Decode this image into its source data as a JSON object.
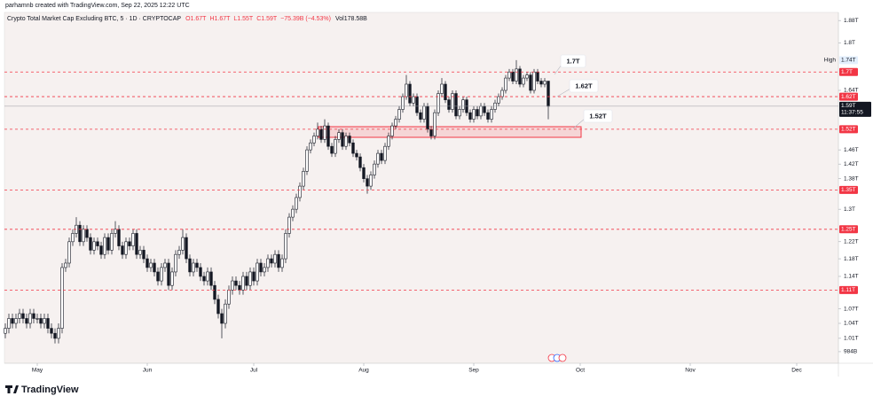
{
  "chart_data": {
    "type": "candlestick",
    "attribution": "parhamnb created with TradingView.com, Sep 22, 2025 12:22 UTC",
    "title": "Crypto Total Market Cap Excluding BTC, 5 · 1D · CRYPTOCAP",
    "legend_values": [
      "O1.67T",
      "H1.67T",
      "L1.55T",
      "C1.59T",
      "−75.39B (−4.53%)",
      "Vol178.58B"
    ],
    "logo": "TradingView",
    "log_scale": true,
    "up_color": "#ffffff",
    "down_color": "#131722",
    "xlim": [
      -0.25,
      234.75
    ],
    "xticks": [
      {
        "value": 9,
        "label": "May"
      },
      {
        "value": 40,
        "label": "Jun"
      },
      {
        "value": 70,
        "label": "Jul"
      },
      {
        "value": 101,
        "label": "Aug"
      },
      {
        "value": 132,
        "label": "Sep"
      },
      {
        "value": 162,
        "label": "Oct"
      },
      {
        "value": 193,
        "label": "Nov"
      },
      {
        "value": 223,
        "label": "Dec"
      }
    ],
    "ylim": [
      0.962,
      1.91
    ],
    "yticks": [
      {
        "value": 1.88,
        "label": "1.88T"
      },
      {
        "value": 1.8,
        "label": "1.8T"
      },
      {
        "value": 1.64,
        "label": "1.64T"
      },
      {
        "value": 1.46,
        "label": "1.46T"
      },
      {
        "value": 1.42,
        "label": "1.42T"
      },
      {
        "value": 1.38,
        "label": "1.38T"
      },
      {
        "value": 1.3,
        "label": "1.3T"
      },
      {
        "value": 1.22,
        "label": "1.22T"
      },
      {
        "value": 1.18,
        "label": "1.18T"
      },
      {
        "value": 1.14,
        "label": "1.14T"
      },
      {
        "value": 1.07,
        "label": "1.07T"
      },
      {
        "value": 1.04,
        "label": "1.04T"
      },
      {
        "value": 1.01,
        "label": "1.01T"
      },
      {
        "value": 0.984,
        "label": "984B"
      }
    ],
    "levels": [
      {
        "value": 1.7,
        "label": "1.7T"
      },
      {
        "value": 1.62,
        "label": "1.62T"
      },
      {
        "value": 1.52,
        "label": "1.52T"
      },
      {
        "value": 1.35,
        "label": "1.35T"
      },
      {
        "value": 1.25,
        "label": "1.25T"
      },
      {
        "value": 1.11,
        "label": "1.11T"
      }
    ],
    "level_color": "#f23645",
    "high": {
      "name": "High",
      "value": 1.74,
      "label": "1.74T"
    },
    "last_price": {
      "value": 1.59,
      "label": "1.59T",
      "countdown": "11:37:55"
    },
    "annotations": [
      "1.7T",
      "1.62T",
      "1.52T"
    ],
    "open": [
      1.02,
      1.03,
      1.05,
      1.04,
      1.05,
      1.06,
      1.05,
      1.04,
      1.06,
      1.05,
      1.05,
      1.04,
      1.05,
      1.03,
      1.02,
      1.01,
      1.03,
      1.16,
      1.17,
      1.22,
      1.24,
      1.26,
      1.22,
      1.25,
      1.23,
      1.2,
      1.22,
      1.21,
      1.19,
      1.23,
      1.2,
      1.24,
      1.25,
      1.21,
      1.19,
      1.22,
      1.21,
      1.24,
      1.19,
      1.2,
      1.18,
      1.16,
      1.17,
      1.15,
      1.13,
      1.16,
      1.17,
      1.12,
      1.15,
      1.19,
      1.2,
      1.23,
      1.18,
      1.15,
      1.17,
      1.16,
      1.14,
      1.13,
      1.15,
      1.12,
      1.09,
      1.06,
      1.04,
      1.08,
      1.11,
      1.13,
      1.12,
      1.11,
      1.14,
      1.12,
      1.15,
      1.13,
      1.17,
      1.15,
      1.16,
      1.18,
      1.17,
      1.19,
      1.16,
      1.18,
      1.24,
      1.28,
      1.3,
      1.33,
      1.36,
      1.4,
      1.46,
      1.48,
      1.5,
      1.52,
      1.49,
      1.53,
      1.47,
      1.45,
      1.49,
      1.51,
      1.47,
      1.5,
      1.48,
      1.45,
      1.44,
      1.41,
      1.38,
      1.36,
      1.39,
      1.42,
      1.45,
      1.43,
      1.47,
      1.5,
      1.53,
      1.55,
      1.58,
      1.62,
      1.66,
      1.6,
      1.62,
      1.57,
      1.55,
      1.59,
      1.52,
      1.5,
      1.57,
      1.63,
      1.66,
      1.61,
      1.58,
      1.63,
      1.56,
      1.58,
      1.61,
      1.57,
      1.55,
      1.58,
      1.56,
      1.59,
      1.57,
      1.55,
      1.58,
      1.6,
      1.62,
      1.64,
      1.68,
      1.7,
      1.67,
      1.71,
      1.66,
      1.68,
      1.69,
      1.64,
      1.7,
      1.67,
      1.66,
      1.67
    ],
    "high_values": [
      1.04,
      1.06,
      1.06,
      1.06,
      1.07,
      1.07,
      1.06,
      1.07,
      1.07,
      1.06,
      1.06,
      1.06,
      1.06,
      1.04,
      1.03,
      1.04,
      1.17,
      1.18,
      1.23,
      1.25,
      1.28,
      1.27,
      1.26,
      1.26,
      1.24,
      1.23,
      1.23,
      1.22,
      1.24,
      1.24,
      1.25,
      1.27,
      1.26,
      1.22,
      1.23,
      1.23,
      1.25,
      1.25,
      1.21,
      1.21,
      1.19,
      1.18,
      1.18,
      1.16,
      1.17,
      1.18,
      1.18,
      1.16,
      1.2,
      1.21,
      1.25,
      1.24,
      1.19,
      1.18,
      1.18,
      1.17,
      1.15,
      1.16,
      1.16,
      1.13,
      1.1,
      1.07,
      1.09,
      1.12,
      1.14,
      1.14,
      1.13,
      1.15,
      1.15,
      1.16,
      1.16,
      1.18,
      1.18,
      1.17,
      1.19,
      1.19,
      1.2,
      1.2,
      1.19,
      1.25,
      1.29,
      1.31,
      1.34,
      1.37,
      1.41,
      1.47,
      1.49,
      1.51,
      1.54,
      1.53,
      1.55,
      1.54,
      1.48,
      1.5,
      1.52,
      1.52,
      1.51,
      1.51,
      1.49,
      1.46,
      1.45,
      1.42,
      1.39,
      1.4,
      1.43,
      1.46,
      1.46,
      1.48,
      1.51,
      1.54,
      1.56,
      1.59,
      1.63,
      1.69,
      1.67,
      1.63,
      1.63,
      1.58,
      1.6,
      1.6,
      1.53,
      1.58,
      1.64,
      1.68,
      1.67,
      1.62,
      1.64,
      1.64,
      1.59,
      1.62,
      1.62,
      1.58,
      1.59,
      1.59,
      1.6,
      1.6,
      1.58,
      1.59,
      1.61,
      1.63,
      1.65,
      1.69,
      1.71,
      1.71,
      1.74,
      1.72,
      1.69,
      1.7,
      1.7,
      1.71,
      1.71,
      1.68,
      1.68,
      1.67
    ],
    "low": [
      1.01,
      1.02,
      1.03,
      1.03,
      1.04,
      1.04,
      1.03,
      1.03,
      1.04,
      1.04,
      1.03,
      1.03,
      1.02,
      1.01,
      1.0,
      1.0,
      1.02,
      1.15,
      1.16,
      1.21,
      1.23,
      1.21,
      1.21,
      1.22,
      1.19,
      1.19,
      1.2,
      1.18,
      1.18,
      1.19,
      1.19,
      1.23,
      1.2,
      1.18,
      1.18,
      1.2,
      1.2,
      1.18,
      1.18,
      1.17,
      1.15,
      1.15,
      1.14,
      1.12,
      1.12,
      1.15,
      1.11,
      1.11,
      1.14,
      1.18,
      1.19,
      1.17,
      1.14,
      1.14,
      1.15,
      1.13,
      1.12,
      1.12,
      1.11,
      1.08,
      1.05,
      1.01,
      1.03,
      1.07,
      1.1,
      1.11,
      1.1,
      1.1,
      1.11,
      1.11,
      1.12,
      1.12,
      1.14,
      1.14,
      1.15,
      1.16,
      1.16,
      1.15,
      1.15,
      1.17,
      1.23,
      1.27,
      1.29,
      1.32,
      1.35,
      1.39,
      1.45,
      1.47,
      1.49,
      1.48,
      1.48,
      1.46,
      1.44,
      1.44,
      1.48,
      1.46,
      1.46,
      1.47,
      1.44,
      1.43,
      1.4,
      1.37,
      1.34,
      1.35,
      1.38,
      1.41,
      1.42,
      1.42,
      1.46,
      1.49,
      1.52,
      1.54,
      1.57,
      1.61,
      1.59,
      1.59,
      1.56,
      1.54,
      1.54,
      1.51,
      1.49,
      1.49,
      1.56,
      1.62,
      1.6,
      1.57,
      1.57,
      1.55,
      1.55,
      1.57,
      1.56,
      1.54,
      1.54,
      1.55,
      1.55,
      1.56,
      1.54,
      1.54,
      1.57,
      1.59,
      1.61,
      1.63,
      1.67,
      1.66,
      1.66,
      1.65,
      1.65,
      1.67,
      1.63,
      1.63,
      1.66,
      1.65,
      1.65,
      1.55
    ],
    "close": [
      1.03,
      1.05,
      1.04,
      1.05,
      1.06,
      1.05,
      1.04,
      1.06,
      1.05,
      1.05,
      1.04,
      1.05,
      1.03,
      1.02,
      1.01,
      1.03,
      1.16,
      1.17,
      1.22,
      1.24,
      1.26,
      1.22,
      1.25,
      1.23,
      1.2,
      1.22,
      1.21,
      1.19,
      1.23,
      1.2,
      1.24,
      1.25,
      1.21,
      1.19,
      1.22,
      1.21,
      1.24,
      1.19,
      1.2,
      1.18,
      1.16,
      1.17,
      1.15,
      1.13,
      1.16,
      1.17,
      1.12,
      1.15,
      1.19,
      1.2,
      1.23,
      1.18,
      1.15,
      1.17,
      1.16,
      1.14,
      1.13,
      1.15,
      1.12,
      1.09,
      1.06,
      1.04,
      1.08,
      1.11,
      1.13,
      1.12,
      1.11,
      1.14,
      1.12,
      1.15,
      1.13,
      1.17,
      1.15,
      1.16,
      1.18,
      1.17,
      1.19,
      1.16,
      1.18,
      1.24,
      1.28,
      1.3,
      1.33,
      1.36,
      1.4,
      1.46,
      1.48,
      1.5,
      1.52,
      1.49,
      1.53,
      1.47,
      1.45,
      1.49,
      1.51,
      1.47,
      1.5,
      1.48,
      1.45,
      1.44,
      1.41,
      1.38,
      1.36,
      1.39,
      1.42,
      1.45,
      1.43,
      1.47,
      1.5,
      1.53,
      1.55,
      1.58,
      1.62,
      1.66,
      1.6,
      1.62,
      1.57,
      1.55,
      1.59,
      1.52,
      1.5,
      1.57,
      1.63,
      1.66,
      1.61,
      1.58,
      1.63,
      1.56,
      1.58,
      1.61,
      1.57,
      1.55,
      1.58,
      1.56,
      1.59,
      1.57,
      1.55,
      1.58,
      1.6,
      1.62,
      1.64,
      1.68,
      1.7,
      1.67,
      1.71,
      1.66,
      1.68,
      1.69,
      1.64,
      1.7,
      1.67,
      1.66,
      1.67,
      1.59
    ]
  }
}
